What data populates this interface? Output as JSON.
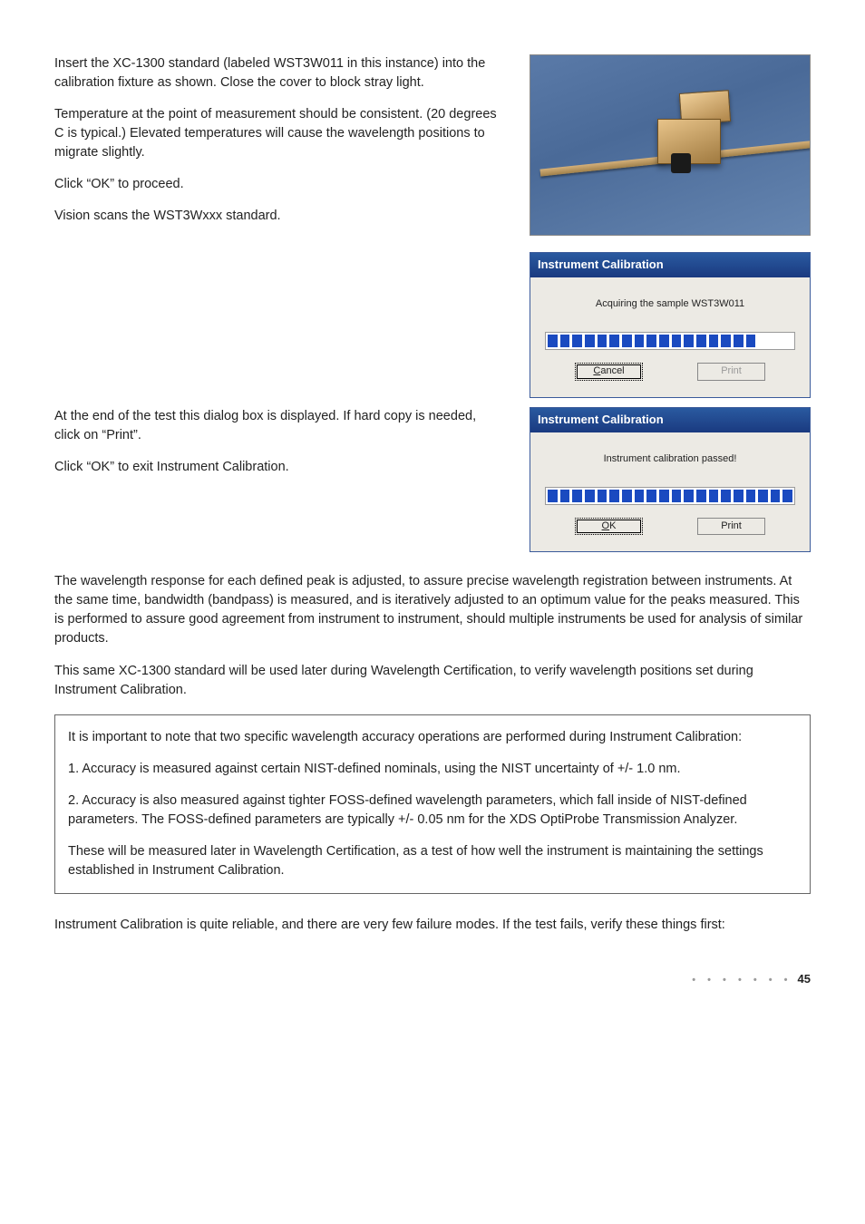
{
  "page_number": "45",
  "footer_dots": "• • • • • • •",
  "section1": {
    "p1": "Insert the XC-1300 standard (labeled WST3W011 in this instance) into the calibration fixture as shown. Close the cover to block stray light.",
    "p2": "Temperature at the point of measurement should be consistent. (20 degrees C is typical.) Elevated temperatures will cause the wavelength positions to migrate slightly.",
    "p3": "Click “OK” to proceed.",
    "p4": "Vision scans the WST3Wxxx standard."
  },
  "section2": {
    "p1": "At the end of the test this dialog box is displayed. If hard copy is needed, click on “Print”.",
    "p2": "Click “OK” to exit Instrument Calibration."
  },
  "body": {
    "p1": "The wavelength response for each defined peak is adjusted, to assure precise wavelength registration between instruments. At the same time, bandwidth (bandpass) is measured, and is iteratively adjusted to an optimum value for the peaks measured. This is performed to assure good agreement from instrument to instrument, should multiple instruments be used for analysis of similar products.",
    "p2": "This same XC-1300 standard will be used later during Wavelength Certification, to verify wavelength positions set during Instrument Calibration."
  },
  "callout": {
    "p1": "It is important to note that two specific wavelength accuracy operations are performed during Instrument Calibration:",
    "p2": "1. Accuracy is measured against certain NIST-defined nominals, using the NIST uncertainty of +/- 1.0 nm.",
    "p3": "2. Accuracy is also measured against tighter FOSS-defined wavelength parameters, which fall inside of NIST-defined parameters. The FOSS-defined parameters are typically +/- 0.05 nm for the XDS OptiProbe Transmission Analyzer.",
    "p4": "These will be measured later in Wavelength Certification, as a test of how well the instrument is maintaining the settings established in Instrument Calibration."
  },
  "closing_p": "Instrument Calibration is quite reliable, and there are very few failure modes. If the test fails, verify these things first:",
  "dialog1": {
    "title": "Instrument Calibration",
    "message": "Acquiring the sample WST3W011",
    "btn_cancel_u": "C",
    "btn_cancel_rest": "ancel",
    "btn_print": "Print",
    "progress_total": 20,
    "progress_filled": 17,
    "titlebar_bg_from": "#2a5aa0",
    "titlebar_bg_to": "#1a3a80",
    "body_bg": "#eceae4",
    "segment_color": "#1a4ac0"
  },
  "dialog2": {
    "title": "Instrument Calibration",
    "message": "Instrument calibration passed!",
    "btn_ok_u": "O",
    "btn_ok_rest": "K",
    "btn_print": "Print",
    "progress_total": 20,
    "progress_filled": 20,
    "titlebar_bg_from": "#2a5aa0",
    "titlebar_bg_to": "#1a3a80",
    "body_bg": "#eceae4",
    "segment_color": "#1a4ac0"
  },
  "photo": {
    "bg_gradient_from": "#5a7aa8",
    "bg_gradient_to": "#6585b0",
    "rail_color_from": "#d4b07a",
    "rail_color_to": "#a0804a",
    "block_color_from": "#e8c48a",
    "block_color_to": "#a07a40"
  }
}
